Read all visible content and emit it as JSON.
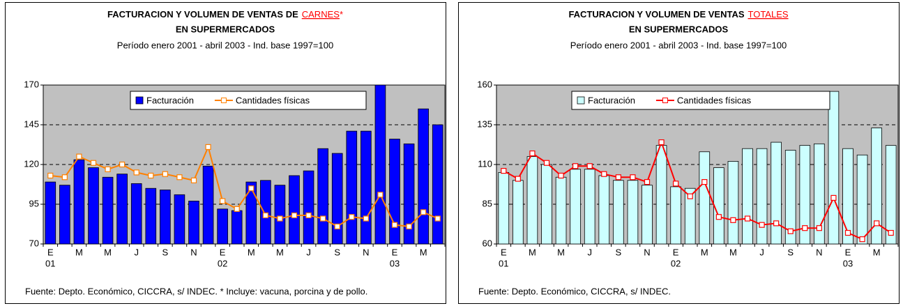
{
  "chart_data": [
    {
      "type": "combo",
      "title_prefix": "FACTURACION Y VOLUMEN DE VENTAS DE",
      "title_highlight": "CARNES",
      "title_suffix": "*",
      "title_line2": "EN SUPERMERCADOS",
      "subtitle": "Período enero 2001 - abril 2003 - Ind. base 1997=100",
      "source": "Fuente: Depto. Económico, CICCRA, s/ INDEC. * Incluye: vacuna, porcina y de pollo.",
      "categories": [
        "E",
        null,
        "M",
        null,
        "M",
        null,
        "J",
        null,
        "S",
        null,
        "N",
        null,
        "E",
        null,
        "M",
        null,
        "M",
        null,
        "J",
        null,
        "S",
        null,
        "N",
        null,
        "E",
        null,
        "M",
        null
      ],
      "year_labels": [
        "01",
        null,
        null,
        null,
        null,
        null,
        null,
        null,
        null,
        null,
        null,
        null,
        "02",
        null,
        null,
        null,
        null,
        null,
        null,
        null,
        null,
        null,
        null,
        null,
        "03",
        null,
        null,
        null
      ],
      "ylim": [
        70,
        170
      ],
      "yticks": [
        70,
        95,
        120,
        145,
        170
      ],
      "grid": true,
      "series": [
        {
          "name": "Facturación",
          "type": "bar",
          "color": "#0000ff",
          "values": [
            109,
            107,
            123,
            118,
            112,
            114,
            108,
            105,
            104,
            101,
            97,
            119,
            92,
            91,
            109,
            110,
            107,
            113,
            116,
            130,
            127,
            141,
            141,
            170,
            136,
            133,
            155,
            145
          ]
        },
        {
          "name": "Cantidades físicas",
          "type": "line",
          "color": "#ff8000",
          "values": [
            113,
            112,
            125,
            121,
            117,
            120,
            115,
            113,
            114,
            112,
            110,
            131,
            97,
            92,
            105,
            88,
            86,
            88,
            88,
            86,
            81,
            87,
            86,
            101,
            82,
            81,
            90,
            86
          ]
        }
      ]
    },
    {
      "type": "combo",
      "title_prefix": "FACTURACION Y VOLUMEN DE VENTAS",
      "title_highlight": "TOTALES",
      "title_line2": "EN SUPERMERCADOS",
      "subtitle": "Período enero 2001 - abril 2003 - Ind. base 1997=100",
      "source": "Fuente: Depto. Económico, CICCRA, s/ INDEC.",
      "categories": [
        "E",
        null,
        "M",
        null,
        "M",
        null,
        "J",
        null,
        "S",
        null,
        "N",
        null,
        "E",
        null,
        "M",
        null,
        "M",
        null,
        "J",
        null,
        "S",
        null,
        "N",
        null,
        "E",
        null,
        "M",
        null
      ],
      "year_labels": [
        "01",
        null,
        null,
        null,
        null,
        null,
        null,
        null,
        null,
        null,
        null,
        null,
        "02",
        null,
        null,
        null,
        null,
        null,
        null,
        null,
        null,
        null,
        null,
        null,
        "03",
        null,
        null,
        null
      ],
      "ylim": [
        60,
        160
      ],
      "yticks": [
        60,
        85,
        110,
        135,
        160
      ],
      "grid": true,
      "series": [
        {
          "name": "Facturación",
          "type": "bar",
          "color": "#ccffff",
          "values": [
            105,
            100,
            115,
            110,
            102,
            107,
            107,
            103,
            100,
            100,
            97,
            122,
            96,
            95,
            118,
            108,
            112,
            120,
            120,
            124,
            119,
            122,
            123,
            156,
            120,
            116,
            133,
            122
          ]
        },
        {
          "name": "Cantidades físicas",
          "type": "line",
          "color": "#ff0000",
          "values": [
            106,
            101,
            117,
            111,
            103,
            109,
            109,
            104,
            102,
            102,
            99,
            124,
            98,
            90,
            99,
            77,
            75,
            76,
            72,
            73,
            68,
            70,
            70,
            89,
            67,
            63,
            73,
            67
          ]
        }
      ]
    }
  ]
}
